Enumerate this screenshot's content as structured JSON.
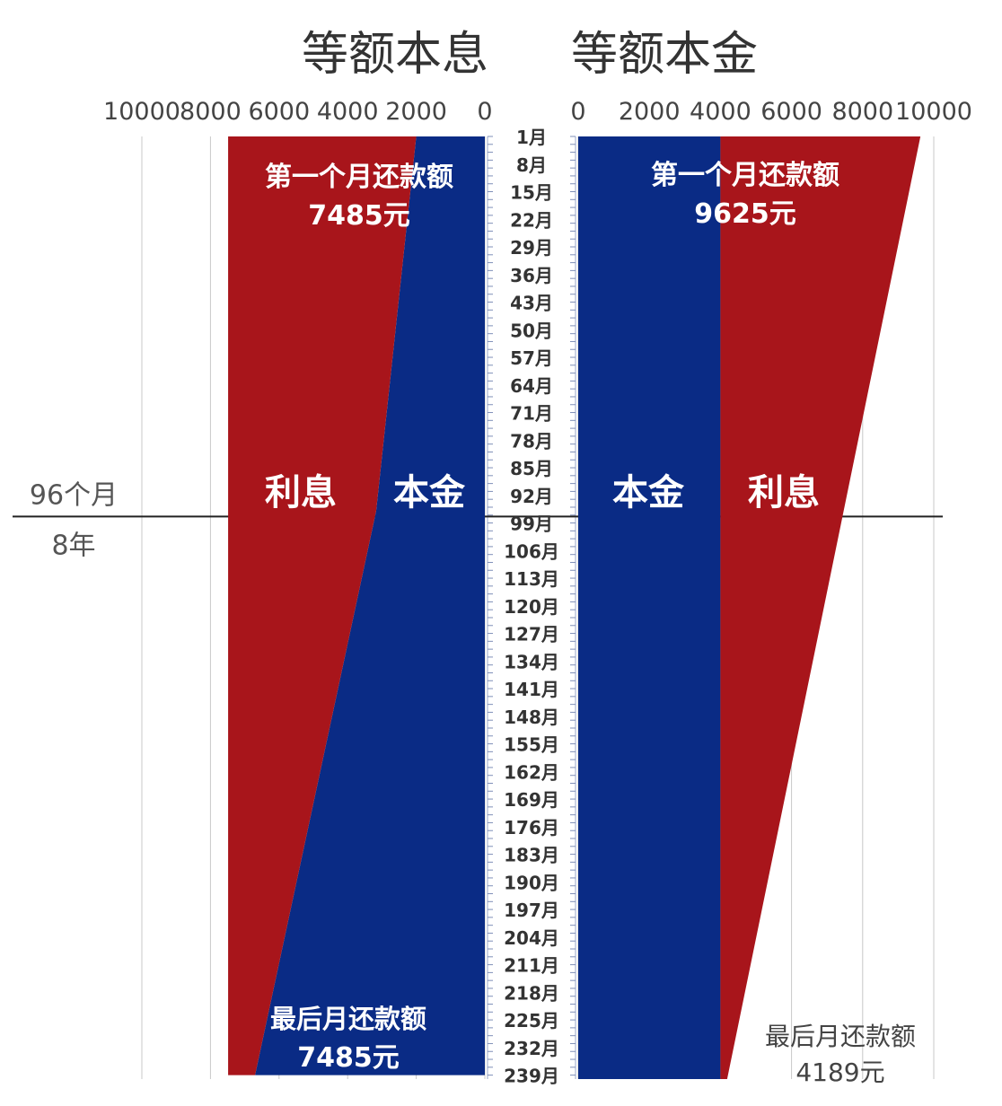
{
  "chart_data": [
    {
      "type": "area",
      "title": "等额本息",
      "orientation": "horizontal-reversed",
      "xlim": [
        0,
        10000
      ],
      "ticks": [
        10000,
        8000,
        6000,
        4000,
        2000,
        0
      ],
      "tick_labels": [
        "10000",
        "8000",
        "6000",
        "4000",
        "2000",
        "0"
      ],
      "months": [
        1,
        96,
        239
      ],
      "series": [
        {
          "name": "本金",
          "color": "#0a2b85",
          "values": [
            2000,
            3170,
            6700
          ]
        },
        {
          "name": "利息",
          "color": "#a8151b",
          "values": [
            5485,
            4315,
            785
          ]
        }
      ],
      "annotations": {
        "first_label": "第一个月还款额",
        "first_value": "7485元",
        "last_label": "最后月还款额",
        "last_value": "7485元"
      }
    },
    {
      "type": "area",
      "title": "等额本金",
      "orientation": "horizontal",
      "xlim": [
        0,
        10000
      ],
      "ticks": [
        0,
        2000,
        4000,
        6000,
        8000,
        10000
      ],
      "tick_labels": [
        "0",
        "2000",
        "4000",
        "6000",
        "8000",
        "10000"
      ],
      "months": [
        1,
        240
      ],
      "series": [
        {
          "name": "本金",
          "color": "#0a2b85",
          "values": [
            4000,
            4000
          ]
        },
        {
          "name": "利息",
          "color": "#a8151b",
          "values": [
            5625,
            189
          ]
        }
      ],
      "annotations": {
        "first_label": "第一个月还款额",
        "first_value": "9625元",
        "last_label": "最后月还款额",
        "last_value": "4189元"
      }
    }
  ],
  "month_labels": [
    "1月",
    "8月",
    "15月",
    "22月",
    "29月",
    "36月",
    "43月",
    "50月",
    "57月",
    "64月",
    "71月",
    "78月",
    "85月",
    "92月",
    "99月",
    "106月",
    "113月",
    "120月",
    "127月",
    "134月",
    "141月",
    "148月",
    "155月",
    "162月",
    "169月",
    "176月",
    "183月",
    "190月",
    "197月",
    "204月",
    "211月",
    "218月",
    "225月",
    "232月",
    "239月"
  ],
  "marker": {
    "month": 96,
    "label_months": "96个月",
    "label_years": "8年"
  },
  "area_labels": {
    "left_interest": "利息",
    "left_principal": "本金",
    "right_principal": "本金",
    "right_interest": "利息"
  }
}
